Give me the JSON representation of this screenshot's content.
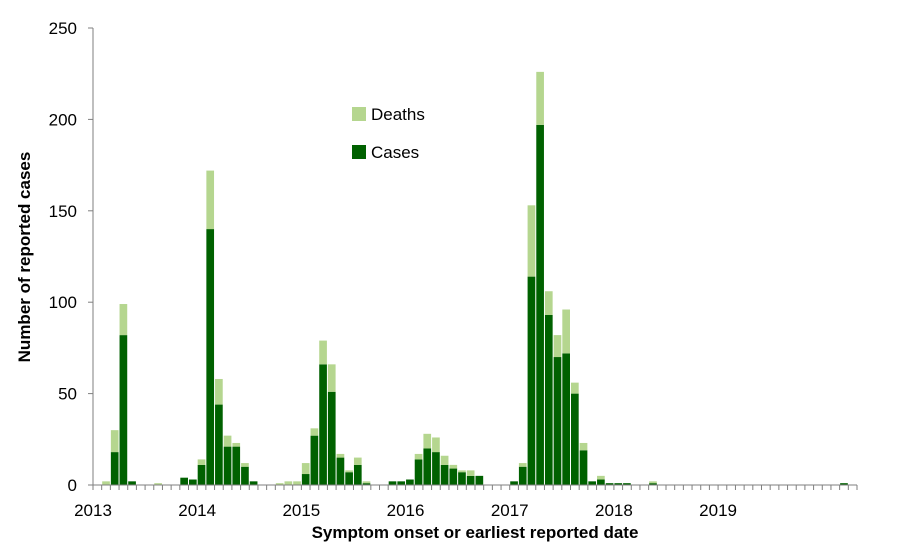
{
  "chart_data": {
    "type": "bar",
    "stacked": true,
    "xlabel": "Symptom onset or earliest reported date",
    "ylabel": "Number of reported cases",
    "ylim": [
      0,
      250
    ],
    "y_ticks": [
      0,
      50,
      100,
      150,
      200,
      250
    ],
    "x_tick_labels": [
      "2013",
      "2014",
      "2015",
      "2016",
      "2017",
      "2018",
      "2019"
    ],
    "x_start": "2013-01",
    "x_end": "2019-07",
    "grid": false,
    "legend_position": "top-center",
    "series": [
      {
        "name": "Cases",
        "color": "#006100",
        "values": [
          0,
          0,
          18,
          82,
          2,
          0,
          0,
          0,
          0,
          0,
          4,
          3,
          11,
          140,
          44,
          21,
          21,
          10,
          2,
          0,
          0,
          0,
          0,
          0,
          6,
          27,
          66,
          51,
          15,
          7,
          11,
          1,
          0,
          0,
          2,
          2,
          3,
          14,
          20,
          18,
          11,
          9,
          7,
          5,
          5,
          0,
          0,
          0,
          2,
          10,
          114,
          197,
          93,
          70,
          72,
          50,
          19,
          2,
          3,
          1,
          1,
          1,
          0,
          0,
          1,
          0,
          0,
          0,
          0,
          0,
          0,
          0,
          0,
          0,
          0,
          0,
          0,
          0,
          0,
          0,
          0,
          0,
          0,
          0,
          0,
          0,
          1,
          0
        ]
      },
      {
        "name": "Deaths",
        "color": "#b5d68f",
        "values": [
          0,
          2,
          12,
          17,
          0,
          0,
          0,
          1,
          0,
          0,
          0,
          0,
          3,
          32,
          14,
          6,
          2,
          2,
          0,
          0,
          0,
          1,
          2,
          2,
          6,
          4,
          13,
          15,
          2,
          1,
          4,
          1,
          0,
          0,
          0,
          0,
          0,
          3,
          8,
          8,
          5,
          2,
          1,
          3,
          0,
          0,
          0,
          0,
          0,
          2,
          39,
          29,
          13,
          12,
          24,
          6,
          4,
          0,
          2,
          0,
          0,
          0,
          0,
          0,
          1,
          0,
          0,
          0,
          0,
          0,
          0,
          0,
          0,
          0,
          0,
          0,
          0,
          0,
          0,
          0,
          0,
          0,
          0,
          0,
          0,
          0,
          0,
          0
        ]
      }
    ]
  }
}
